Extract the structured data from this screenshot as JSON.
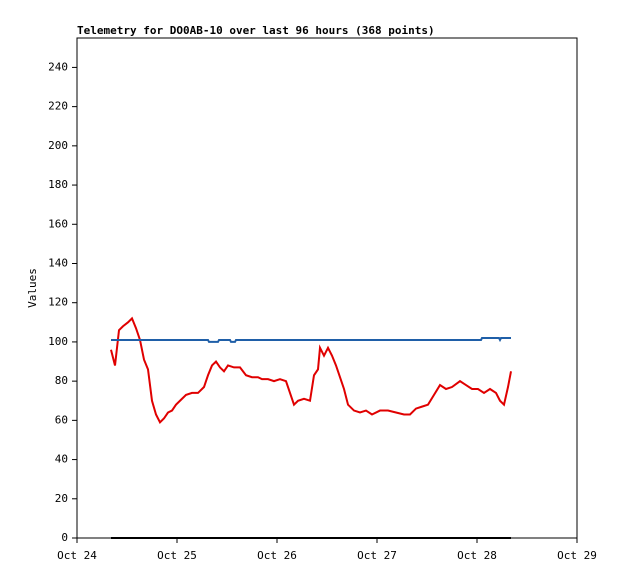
{
  "chart_data": {
    "type": "line",
    "title": "Telemetry for DO0AB-10 over last 96 hours (368 points)",
    "y_label": "Values",
    "xlim": [
      24,
      29
    ],
    "xticks": [
      {
        "value": 24,
        "label": "Oct 24"
      },
      {
        "value": 25,
        "label": "Oct 25"
      },
      {
        "value": 26,
        "label": "Oct 26"
      },
      {
        "value": 27,
        "label": "Oct 27"
      },
      {
        "value": 28,
        "label": "Oct 28"
      },
      {
        "value": 29,
        "label": "Oct 29"
      }
    ],
    "ylim": [
      0,
      255
    ],
    "yticks": [
      0,
      20,
      40,
      60,
      80,
      100,
      120,
      140,
      160,
      180,
      200,
      220,
      240
    ],
    "series": [
      {
        "color": "#e00000",
        "x": [
          24.34,
          24.38,
          24.42,
          24.46,
          24.51,
          24.55,
          24.59,
          24.63,
          24.67,
          24.71,
          24.75,
          24.79,
          24.83,
          24.87,
          24.91,
          24.95,
          24.99,
          25.03,
          25.09,
          25.15,
          25.21,
          25.27,
          25.31,
          25.35,
          25.39,
          25.43,
          25.47,
          25.51,
          25.57,
          25.63,
          25.69,
          25.75,
          25.81,
          25.85,
          25.91,
          25.97,
          26.03,
          26.09,
          26.13,
          26.17,
          26.21,
          26.27,
          26.33,
          26.37,
          26.41,
          26.43,
          26.47,
          26.51,
          26.55,
          26.59,
          26.63,
          26.67,
          26.71,
          26.77,
          26.83,
          26.89,
          26.95,
          27.03,
          27.11,
          27.19,
          27.27,
          27.33,
          27.39,
          27.45,
          27.51,
          27.57,
          27.63,
          27.69,
          27.75,
          27.83,
          27.89,
          27.95,
          28.01,
          28.07,
          28.13,
          28.19,
          28.23,
          28.27,
          28.31,
          28.34
        ],
        "values": [
          96,
          88,
          106,
          108,
          110,
          112,
          107,
          101,
          91,
          86,
          70,
          63,
          59,
          61,
          64,
          65,
          68,
          70,
          73,
          74,
          74,
          77,
          83,
          88,
          90,
          87,
          85,
          88,
          87,
          87,
          83,
          82,
          82,
          81,
          81,
          80,
          81,
          80,
          74,
          68,
          70,
          71,
          70,
          83,
          86,
          97,
          93,
          97,
          93,
          88,
          82,
          76,
          68,
          65,
          64,
          65,
          63,
          65,
          65,
          64,
          63,
          63,
          66,
          67,
          68,
          73,
          78,
          76,
          77,
          80,
          78,
          76,
          76,
          74,
          76,
          74,
          70,
          68,
          77,
          85
        ]
      },
      {
        "color": "#1f5fa8",
        "x": [
          24.34,
          25.31,
          25.32,
          25.41,
          25.42,
          25.53,
          25.54,
          25.58,
          25.59,
          28.04,
          28.05,
          28.22,
          28.23,
          28.24,
          28.34
        ],
        "values": [
          101,
          101,
          100,
          100,
          101,
          101,
          100,
          100,
          101,
          101,
          102,
          102,
          101,
          102,
          102
        ]
      },
      {
        "color": "#000000",
        "x": [
          24.34,
          28.34
        ],
        "values": [
          0,
          0
        ]
      }
    ]
  }
}
